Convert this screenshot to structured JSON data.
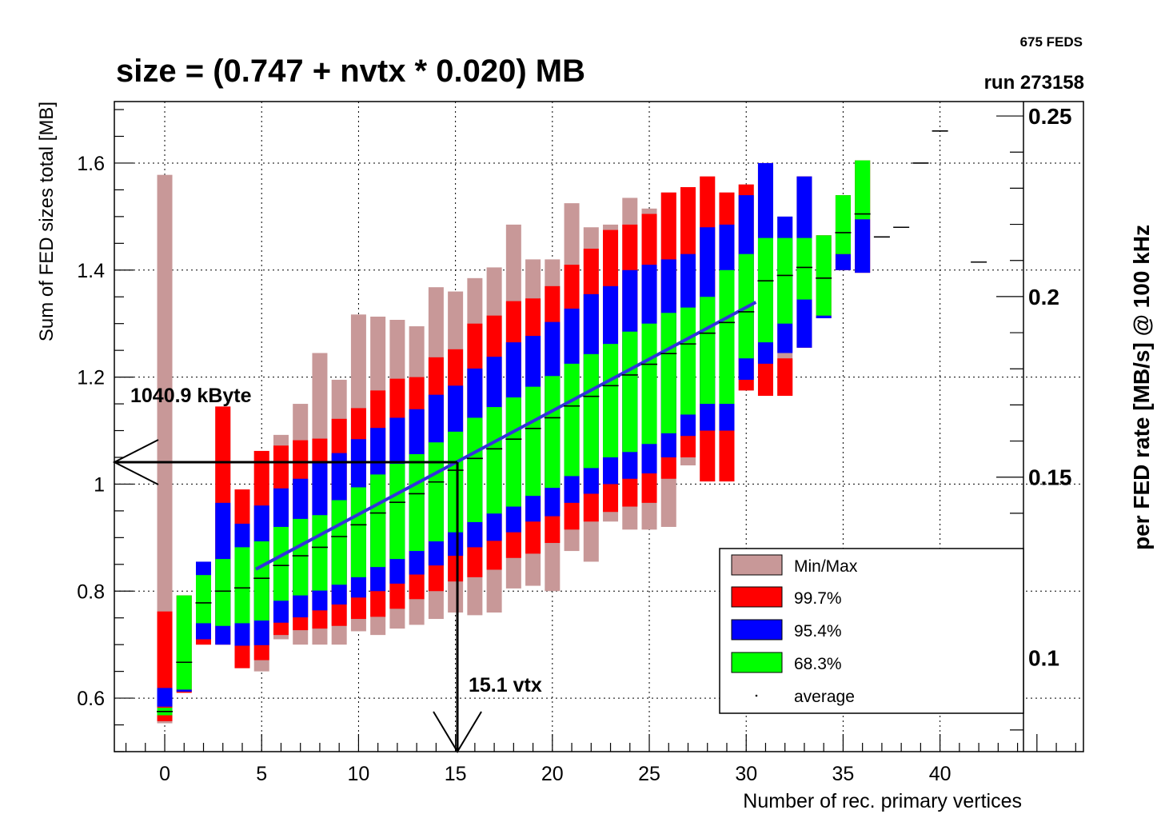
{
  "header": {
    "title": "size = (0.747 + nvtx * 0.020) MB",
    "feds": "675 FEDS",
    "run": "run 273158"
  },
  "chart_data": {
    "type": "box",
    "title": "size = (0.747 + nvtx * 0.020) MB",
    "xlabel": "Number of rec. primary vertices",
    "ylabel": "Sum of FED sizes total [MB]",
    "y2label": "per FED rate [MB/s] @ 100 kHz",
    "xlim": [
      -2.6,
      47.4
    ],
    "ylim": [
      0.5,
      1.715
    ],
    "y2lim": [
      0.074,
      0.254
    ],
    "xticks": [
      0,
      5,
      10,
      15,
      20,
      25,
      30,
      35,
      40
    ],
    "yticks": [
      0.6,
      0.8,
      1,
      1.2,
      1.4,
      1.6
    ],
    "yticklabels": [
      "0.6",
      "0.8",
      "1",
      "1.2",
      "1.4",
      "1.6"
    ],
    "y2ticks": [
      0.1,
      0.15,
      0.2,
      0.25
    ],
    "y2ticklabels": [
      "0.1",
      "0.15",
      "0.2",
      "0.25"
    ],
    "grid": true,
    "legend": {
      "position": "bottom-right",
      "entries": [
        {
          "label": "Min/Max",
          "color": "#c89898",
          "kind": "box"
        },
        {
          "label": "99.7%",
          "color": "#ff0000",
          "kind": "box"
        },
        {
          "label": "95.4%",
          "color": "#0000ff",
          "kind": "box"
        },
        {
          "label": "68.3%",
          "color": "#00ff00",
          "kind": "box"
        },
        {
          "label": "average",
          "color": "#000000",
          "kind": "dot"
        }
      ]
    },
    "bands": {
      "minmax_color": "#c89898",
      "p997_color": "#ff0000",
      "p954_color": "#0000ff",
      "p683_color": "#00ff00",
      "fit_color": "#3232dc"
    },
    "columns": [
      {
        "x": 0,
        "min": 0.553,
        "max": 1.578,
        "p997": [
          0.557,
          0.762
        ],
        "p954": [
          0.584,
          0.619
        ],
        "p683": [
          0.568,
          0.582
        ],
        "avg": 0.575
      },
      {
        "x": 1,
        "min": 0.61,
        "max": 0.792,
        "p997": [
          0.61,
          0.792
        ],
        "p954": [
          0.612,
          0.616
        ],
        "p683": [
          0.616,
          0.792
        ],
        "avg": 0.667
      },
      {
        "x": 2,
        "min": 0.7,
        "max": 0.855,
        "p997": [
          0.7,
          0.71
        ],
        "p954": [
          0.71,
          0.855
        ],
        "p683": [
          0.74,
          0.83
        ],
        "avg": 0.778
      },
      {
        "x": 3,
        "min": 0.7,
        "max": 1.145,
        "p997": [
          0.7,
          1.145
        ],
        "p954": [
          0.7,
          0.965
        ],
        "p683": [
          0.735,
          0.86
        ],
        "avg": 0.8
      },
      {
        "x": 4,
        "min": 0.656,
        "max": 0.99,
        "p997": [
          0.656,
          0.99
        ],
        "p954": [
          0.698,
          0.926
        ],
        "p683": [
          0.74,
          0.882
        ],
        "avg": 0.806
      },
      {
        "x": 5,
        "min": 0.65,
        "max": 1.062,
        "p997": [
          0.671,
          1.062
        ],
        "p954": [
          0.699,
          0.96
        ],
        "p683": [
          0.745,
          0.893
        ],
        "avg": 0.824
      },
      {
        "x": 6,
        "min": 0.71,
        "max": 1.092,
        "p997": [
          0.718,
          1.072
        ],
        "p954": [
          0.741,
          0.992
        ],
        "p683": [
          0.782,
          0.92
        ],
        "avg": 0.848
      },
      {
        "x": 7,
        "min": 0.7,
        "max": 1.15,
        "p997": [
          0.727,
          1.082
        ],
        "p954": [
          0.751,
          1.01
        ],
        "p683": [
          0.792,
          0.935
        ],
        "avg": 0.866
      },
      {
        "x": 8,
        "min": 0.7,
        "max": 1.245,
        "p997": [
          0.73,
          1.085
        ],
        "p954": [
          0.764,
          1.04
        ],
        "p683": [
          0.801,
          0.942
        ],
        "avg": 0.882
      },
      {
        "x": 9,
        "min": 0.7,
        "max": 1.195,
        "p997": [
          0.735,
          1.122
        ],
        "p954": [
          0.775,
          1.058
        ],
        "p683": [
          0.812,
          0.97
        ],
        "avg": 0.902
      },
      {
        "x": 10,
        "min": 0.725,
        "max": 1.317,
        "p997": [
          0.748,
          1.142
        ],
        "p954": [
          0.788,
          1.084
        ],
        "p683": [
          0.826,
          0.994
        ],
        "avg": 0.924
      },
      {
        "x": 11,
        "min": 0.718,
        "max": 1.313,
        "p997": [
          0.752,
          1.175
        ],
        "p954": [
          0.8,
          1.105
        ],
        "p683": [
          0.845,
          1.018
        ],
        "avg": 0.946
      },
      {
        "x": 12,
        "min": 0.73,
        "max": 1.307,
        "p997": [
          0.767,
          1.197
        ],
        "p954": [
          0.814,
          1.124
        ],
        "p683": [
          0.86,
          1.038
        ],
        "avg": 0.966
      },
      {
        "x": 13,
        "min": 0.737,
        "max": 1.295,
        "p997": [
          0.785,
          1.2
        ],
        "p954": [
          0.831,
          1.14
        ],
        "p683": [
          0.875,
          1.056
        ],
        "avg": 0.982
      },
      {
        "x": 14,
        "min": 0.748,
        "max": 1.368,
        "p997": [
          0.8,
          1.237
        ],
        "p954": [
          0.848,
          1.167
        ],
        "p683": [
          0.893,
          1.078
        ],
        "avg": 1.004
      },
      {
        "x": 15,
        "min": 0.76,
        "max": 1.36,
        "p997": [
          0.818,
          1.252
        ],
        "p954": [
          0.866,
          1.184
        ],
        "p683": [
          0.91,
          1.098
        ],
        "avg": 1.026
      },
      {
        "x": 16,
        "min": 0.755,
        "max": 1.385,
        "p997": [
          0.826,
          1.3
        ],
        "p954": [
          0.882,
          1.216
        ],
        "p683": [
          0.929,
          1.124
        ],
        "avg": 1.048
      },
      {
        "x": 17,
        "min": 0.76,
        "max": 1.405,
        "p997": [
          0.84,
          1.315
        ],
        "p954": [
          0.894,
          1.238
        ],
        "p683": [
          0.945,
          1.144
        ],
        "avg": 1.066
      },
      {
        "x": 18,
        "min": 0.805,
        "max": 1.485,
        "p997": [
          0.862,
          1.342
        ],
        "p954": [
          0.91,
          1.265
        ],
        "p683": [
          0.958,
          1.162
        ],
        "avg": 1.084
      },
      {
        "x": 19,
        "min": 0.81,
        "max": 1.42,
        "p997": [
          0.87,
          1.347
        ],
        "p954": [
          0.93,
          1.277
        ],
        "p683": [
          0.978,
          1.182
        ],
        "avg": 1.104
      },
      {
        "x": 20,
        "min": 0.8,
        "max": 1.42,
        "p997": [
          0.89,
          1.37
        ],
        "p954": [
          0.94,
          1.303
        ],
        "p683": [
          0.993,
          1.202
        ],
        "avg": 1.124
      },
      {
        "x": 21,
        "min": 0.875,
        "max": 1.525,
        "p997": [
          0.915,
          1.41
        ],
        "p954": [
          0.965,
          1.328
        ],
        "p683": [
          1.015,
          1.225
        ],
        "avg": 1.146
      },
      {
        "x": 22,
        "min": 0.855,
        "max": 1.48,
        "p997": [
          0.93,
          1.44
        ],
        "p954": [
          0.982,
          1.355
        ],
        "p683": [
          1.03,
          1.243
        ],
        "avg": 1.164
      },
      {
        "x": 23,
        "min": 0.93,
        "max": 1.485,
        "p997": [
          0.948,
          1.475
        ],
        "p954": [
          1.0,
          1.37
        ],
        "p683": [
          1.05,
          1.262
        ],
        "avg": 1.184
      },
      {
        "x": 24,
        "min": 0.915,
        "max": 1.535,
        "p997": [
          0.958,
          1.485
        ],
        "p954": [
          1.01,
          1.4
        ],
        "p683": [
          1.06,
          1.285
        ],
        "avg": 1.204
      },
      {
        "x": 25,
        "min": 0.915,
        "max": 1.515,
        "p997": [
          0.965,
          1.505
        ],
        "p954": [
          1.02,
          1.41
        ],
        "p683": [
          1.075,
          1.3
        ],
        "avg": 1.224
      },
      {
        "x": 26,
        "min": 0.92,
        "max": 1.545,
        "p997": [
          1.01,
          1.545
        ],
        "p954": [
          1.05,
          1.42
        ],
        "p683": [
          1.095,
          1.32
        ],
        "avg": 1.244
      },
      {
        "x": 27,
        "min": 1.035,
        "max": 1.555,
        "p997": [
          1.05,
          1.555
        ],
        "p954": [
          1.09,
          1.43
        ],
        "p683": [
          1.13,
          1.33
        ],
        "avg": 1.262
      },
      {
        "x": 28,
        "min": 1.005,
        "max": 1.575,
        "p997": [
          1.005,
          1.575
        ],
        "p954": [
          1.1,
          1.48
        ],
        "p683": [
          1.15,
          1.35
        ],
        "avg": 1.282
      },
      {
        "x": 29,
        "min": 1.005,
        "max": 1.545,
        "p997": [
          1.005,
          1.545
        ],
        "p954": [
          1.1,
          1.485
        ],
        "p683": [
          1.15,
          1.4
        ],
        "avg": 1.302
      },
      {
        "x": 30,
        "min": 1.175,
        "max": 1.56,
        "p997": [
          1.175,
          1.56
        ],
        "p954": [
          1.195,
          1.54
        ],
        "p683": [
          1.235,
          1.43
        ],
        "avg": 1.322
      },
      {
        "x": 31,
        "min": 1.165,
        "max": 1.6,
        "p997": [
          1.165,
          1.6
        ],
        "p954": [
          1.225,
          1.6
        ],
        "p683": [
          1.265,
          1.46
        ],
        "avg": 1.38
      },
      {
        "x": 32,
        "min": 1.165,
        "max": 1.5,
        "p997": [
          1.165,
          1.235
        ],
        "p954": [
          1.245,
          1.5
        ],
        "p683": [
          1.3,
          1.46
        ],
        "avg": 1.39
      },
      {
        "x": 33,
        "min": 1.255,
        "max": 1.575,
        "p997": [
          1.255,
          1.575
        ],
        "p954": [
          1.255,
          1.575
        ],
        "p683": [
          1.345,
          1.46
        ],
        "avg": 1.405
      },
      {
        "x": 34,
        "min": 1.31,
        "max": 1.465,
        "p997": [
          1.31,
          1.465
        ],
        "p954": [
          1.31,
          1.315
        ],
        "p683": [
          1.315,
          1.465
        ],
        "avg": 1.385
      },
      {
        "x": 35,
        "min": 1.4,
        "max": 1.54,
        "p997": [
          1.4,
          1.54
        ],
        "p954": [
          1.4,
          1.43
        ],
        "p683": [
          1.43,
          1.54
        ],
        "avg": 1.47
      },
      {
        "x": 36,
        "min": 1.395,
        "max": 1.605,
        "p997": [
          1.395,
          1.605
        ],
        "p954": [
          1.395,
          1.495
        ],
        "p683": [
          1.495,
          1.605
        ],
        "avg": 1.505
      },
      {
        "x": 37,
        "min": 1.462,
        "max": 1.462,
        "avg": 1.462
      },
      {
        "x": 38,
        "min": 1.48,
        "max": 1.48,
        "avg": 1.48
      },
      {
        "x": 39,
        "min": 1.6,
        "max": 1.6,
        "avg": 1.6
      },
      {
        "x": 40,
        "min": 1.66,
        "max": 1.66,
        "avg": 1.66
      },
      {
        "x": 42,
        "min": 1.415,
        "max": 1.415,
        "avg": 1.415
      }
    ],
    "fit_line": {
      "x": [
        4.7,
        30.5
      ],
      "y": [
        0.841,
        1.34
      ]
    },
    "annotations": [
      {
        "text": "1040.9 kByte",
        "y": 1.041
      },
      {
        "text": "15.1 vtx",
        "x": 15.1
      }
    ]
  }
}
